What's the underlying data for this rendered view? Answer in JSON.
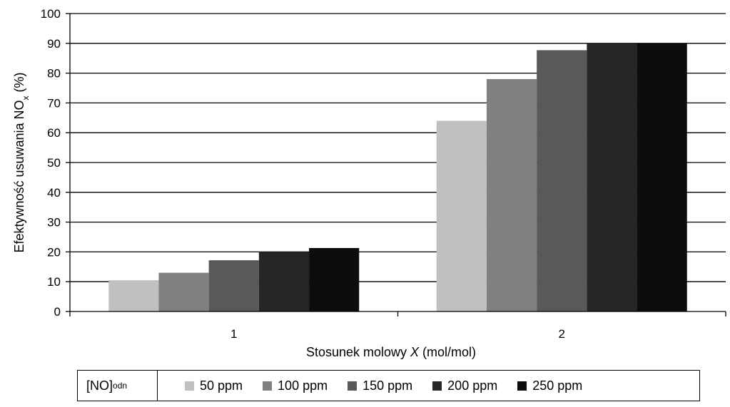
{
  "chart_data": {
    "type": "bar",
    "categories": [
      "1",
      "2"
    ],
    "series": [
      {
        "name": "50 ppm",
        "values": [
          10.5,
          64
        ],
        "color": "#c0c0c0"
      },
      {
        "name": "100 ppm",
        "values": [
          13,
          78
        ],
        "color": "#808080"
      },
      {
        "name": "150 ppm",
        "values": [
          17.2,
          87.7
        ],
        "color": "#595959"
      },
      {
        "name": "200 ppm",
        "values": [
          20,
          90
        ],
        "color": "#262626"
      },
      {
        "name": "250 ppm",
        "values": [
          21.3,
          90
        ],
        "color": "#0d0d0d"
      }
    ],
    "xlabel": "Stosunek molowy X (mol/mol)",
    "xlabel_parts": {
      "before": "Stosunek molowy ",
      "italic": "X",
      "after": " (mol/mol)"
    },
    "ylabel": "Efektywność usuwania NOx (%)",
    "ylabel_parts": {
      "before": "Efektywność usuwania NO",
      "sub": "x",
      "after": " (%)"
    },
    "ylim": [
      0,
      100
    ],
    "yticks": [
      0,
      10,
      20,
      30,
      40,
      50,
      60,
      70,
      80,
      90,
      100
    ],
    "grid": true,
    "legend": {
      "position": "bottom",
      "title_main": "[NO]",
      "title_sub": "odn"
    }
  }
}
